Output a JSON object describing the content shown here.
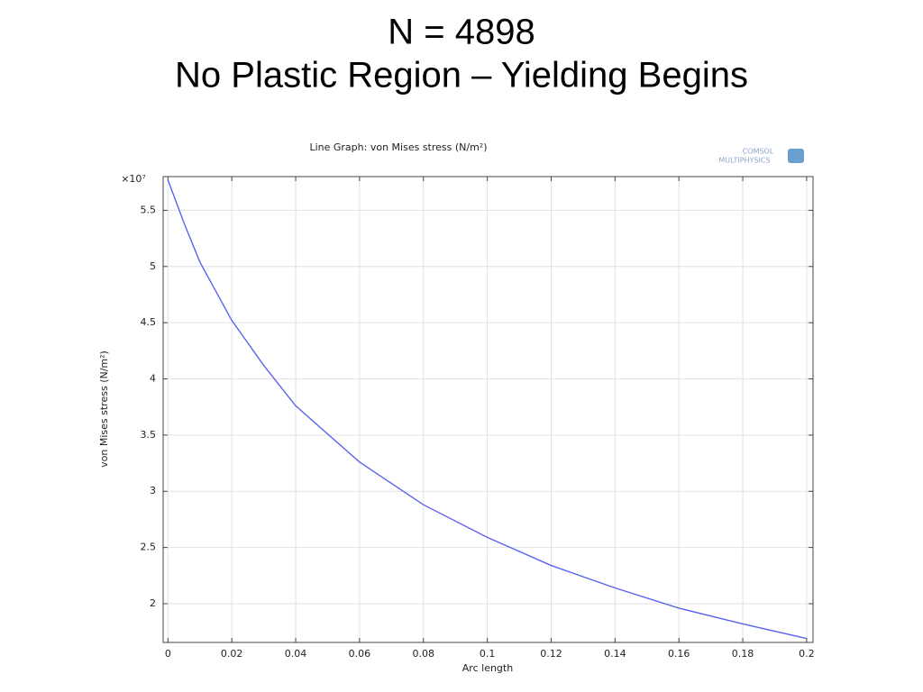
{
  "slide_title": "N = 4898",
  "slide_subtitle": "No Plastic Region – Yielding Begins",
  "chart_data": {
    "type": "line",
    "title": "Line Graph: von Mises stress (N/m²)",
    "x_label": "Arc length",
    "y_label": "von Mises stress (N/m²)",
    "y_multiplier": "×10⁷",
    "logo": [
      "COMSOL",
      "MULTIPHYSICS"
    ],
    "x": [
      0,
      0.005,
      0.01,
      0.02,
      0.03,
      0.04,
      0.06,
      0.08,
      0.1,
      0.12,
      0.14,
      0.16,
      0.18,
      0.2
    ],
    "values": [
      5.77,
      5.39,
      5.04,
      4.52,
      4.12,
      3.76,
      3.26,
      2.88,
      2.59,
      2.34,
      2.14,
      1.96,
      1.82,
      1.69
    ],
    "color": "#5b63f0",
    "xlim": [
      -0.0015,
      0.202
    ],
    "ylim": [
      1.655,
      5.8
    ],
    "xticks": [
      0,
      0.02,
      0.04,
      0.06,
      0.08,
      0.1,
      0.12,
      0.14,
      0.16,
      0.18,
      0.2
    ],
    "yticks": [
      2,
      2.5,
      3,
      3.5,
      4,
      4.5,
      5,
      5.5
    ],
    "grid": true
  }
}
